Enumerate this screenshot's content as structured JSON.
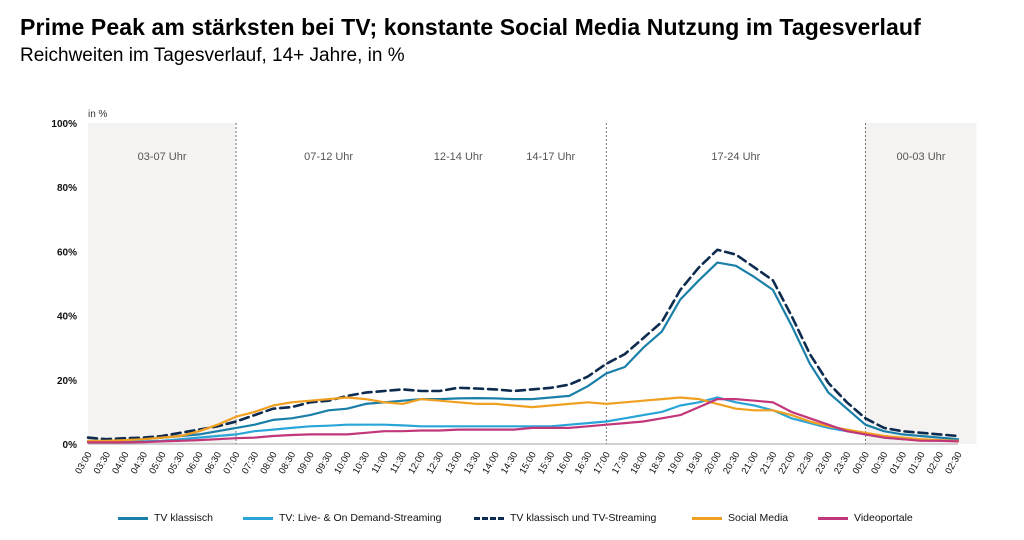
{
  "header": {
    "title": "Prime Peak am stärksten bei TV; konstante Social Media Nutzung im Tagesverlauf",
    "subtitle": "Reichweiten im Tagesverlauf, 14+ Jahre, in %"
  },
  "chart_data": {
    "type": "line",
    "unit_label": "in %",
    "y_ticks": [
      "0%",
      "20%",
      "40%",
      "60%",
      "80%",
      "100%"
    ],
    "ylim": [
      0,
      100
    ],
    "x": [
      "03:00",
      "03:30",
      "04:00",
      "04:30",
      "05:00",
      "05:30",
      "06:00",
      "06:30",
      "07:00",
      "07:30",
      "08:00",
      "08:30",
      "09:00",
      "09:30",
      "10:00",
      "10:30",
      "11:00",
      "11:30",
      "12:00",
      "12:30",
      "13:00",
      "13:30",
      "14:00",
      "14:30",
      "15:00",
      "15:30",
      "16:00",
      "16:30",
      "17:00",
      "17:30",
      "18:00",
      "18:30",
      "19:00",
      "19:30",
      "20:00",
      "20:30",
      "21:00",
      "21:30",
      "22:00",
      "22:30",
      "23:00",
      "23:30",
      "00:00",
      "00:30",
      "01:00",
      "01:30",
      "02:00",
      "02:30"
    ],
    "dayparts": [
      {
        "label": "03-07 Uhr",
        "from": 0,
        "to": 8,
        "shaded": true
      },
      {
        "label": "07-12 Uhr",
        "from": 8,
        "to": 18,
        "shaded": false
      },
      {
        "label": "12-14 Uhr",
        "from": 18,
        "to": 22,
        "shaded": false
      },
      {
        "label": "14-17 Uhr",
        "from": 22,
        "to": 28,
        "shaded": false
      },
      {
        "label": "17-24 Uhr",
        "from": 28,
        "to": 42,
        "shaded": false
      },
      {
        "label": "00-03 Uhr",
        "from": 42,
        "to": 48,
        "shaded": true
      }
    ],
    "divider_indices": [
      8,
      28,
      42
    ],
    "grid": false,
    "legend_position": "bottom",
    "series": [
      {
        "name": "TV klassisch",
        "color": "#1a7fa8",
        "dashed": false,
        "values": [
          1,
          1,
          1.2,
          1.5,
          2,
          2.5,
          3,
          4,
          5,
          6,
          7.5,
          8,
          9,
          10.5,
          11,
          12.5,
          13,
          13.5,
          14,
          14,
          14.2,
          14.3,
          14.2,
          14,
          14,
          14.5,
          15,
          18,
          22,
          24,
          30,
          35,
          45,
          51,
          56.5,
          55.5,
          52,
          48,
          37,
          25,
          16,
          11,
          6,
          4,
          3,
          2.5,
          2,
          1.5
        ]
      },
      {
        "name": "TV: Live- & On Demand-Streaming",
        "color": "#2aa5d8",
        "dashed": false,
        "values": [
          0.5,
          0.5,
          0.7,
          0.8,
          1,
          1.5,
          2,
          2.5,
          3,
          4,
          4.5,
          5,
          5.5,
          5.7,
          6,
          6,
          6,
          5.8,
          5.5,
          5.5,
          5.5,
          5.5,
          5.5,
          5.5,
          5.5,
          5.5,
          6,
          6.5,
          7,
          8,
          9,
          10,
          12,
          13,
          14.5,
          13,
          12,
          10.5,
          8,
          6.5,
          5,
          4,
          3,
          2,
          1.5,
          1.2,
          1,
          1
        ]
      },
      {
        "name": "TV klassisch und TV-Streaming",
        "color": "#0d2b4e",
        "dashed": true,
        "values": [
          2,
          1.5,
          1.8,
          2,
          2.5,
          3.5,
          4.5,
          5.5,
          7,
          9,
          11,
          11.5,
          13,
          13.5,
          15,
          16,
          16.5,
          17,
          16.5,
          16.5,
          17.5,
          17.3,
          17,
          16.5,
          17,
          17.5,
          18.5,
          21,
          25,
          28,
          33,
          38,
          48,
          55,
          60.5,
          59,
          55,
          51,
          40,
          28,
          19,
          13,
          8,
          5,
          4,
          3.5,
          3,
          2.5
        ]
      },
      {
        "name": "Social Media",
        "color": "#f0a020",
        "dashed": false,
        "values": [
          1,
          1,
          1.2,
          1.5,
          2,
          2.5,
          4,
          6,
          8.5,
          10,
          12,
          13,
          13.5,
          14,
          14.5,
          14,
          13,
          12.5,
          14,
          13.5,
          13,
          12.5,
          12.5,
          12,
          11.5,
          12,
          12.5,
          13,
          12.5,
          13,
          13.5,
          14,
          14.5,
          14,
          12.5,
          11,
          10.5,
          10.5,
          9,
          7,
          5.5,
          4.5,
          3.5,
          2.5,
          2,
          1.5,
          1.2,
          1
        ]
      },
      {
        "name": "Videoportale",
        "color": "#c2377a",
        "dashed": false,
        "values": [
          0.5,
          0.5,
          0.5,
          0.6,
          0.8,
          1,
          1.2,
          1.5,
          1.8,
          2,
          2.5,
          2.8,
          3,
          3,
          3,
          3.5,
          4,
          4,
          4.2,
          4.2,
          4.5,
          4.5,
          4.5,
          4.5,
          5,
          5,
          5,
          5.5,
          6,
          6.5,
          7,
          8,
          9,
          11.5,
          14,
          14,
          13.5,
          13,
          10,
          8,
          6,
          4,
          3,
          2,
          1.5,
          1,
          1,
          0.8
        ]
      }
    ]
  },
  "legend": {
    "items": [
      {
        "label": "TV klassisch",
        "color": "#1a7fa8",
        "dashed": false
      },
      {
        "label": "TV: Live- & On Demand-Streaming",
        "color": "#2aa5d8",
        "dashed": false
      },
      {
        "label": "TV klassisch und TV-Streaming",
        "color": "#0d2b4e",
        "dashed": true
      },
      {
        "label": "Social Media",
        "color": "#f0a020",
        "dashed": false
      },
      {
        "label": "Videoportale",
        "color": "#c2377a",
        "dashed": false
      }
    ]
  }
}
